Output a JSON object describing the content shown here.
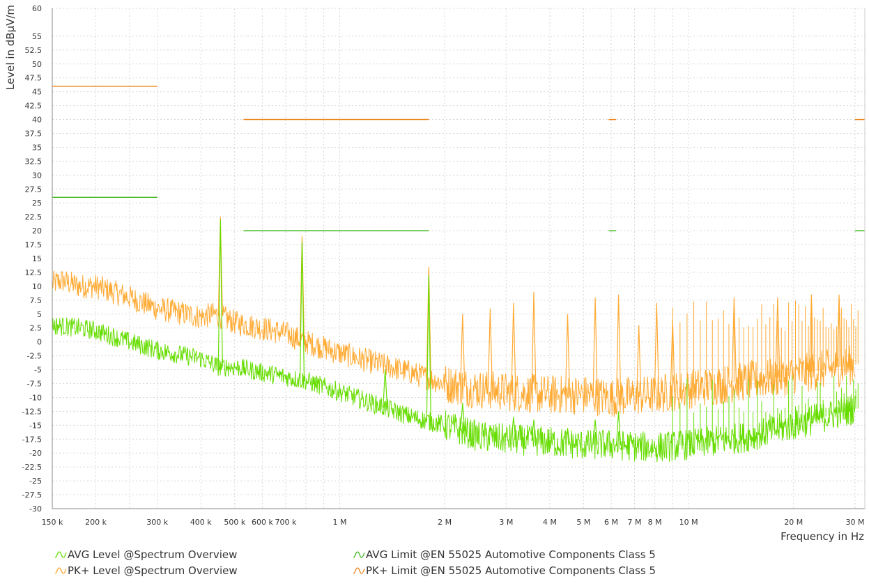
{
  "chart_data": {
    "type": "line",
    "xlabel": "Frequency in Hz",
    "ylabel": "Level in dBµV/m",
    "x_scale": "log",
    "xlim": [
      150000,
      32000000
    ],
    "ylim": [
      -30,
      60
    ],
    "grid": true,
    "y_ticks": [
      {
        "v": 60,
        "label": "60"
      },
      {
        "v": 55,
        "label": "55"
      },
      {
        "v": 52.5,
        "label": "52.5"
      },
      {
        "v": 50,
        "label": "50"
      },
      {
        "v": 47.5,
        "label": "47.5"
      },
      {
        "v": 45,
        "label": "45"
      },
      {
        "v": 42.5,
        "label": "42.5"
      },
      {
        "v": 40,
        "label": "40"
      },
      {
        "v": 37.5,
        "label": "37.5"
      },
      {
        "v": 35,
        "label": "35"
      },
      {
        "v": 32.5,
        "label": "32.5"
      },
      {
        "v": 30,
        "label": "30"
      },
      {
        "v": 27.5,
        "label": "27.5"
      },
      {
        "v": 25,
        "label": "25"
      },
      {
        "v": 22.5,
        "label": "22.5"
      },
      {
        "v": 20,
        "label": "20"
      },
      {
        "v": 17.5,
        "label": "17.5"
      },
      {
        "v": 15,
        "label": "15"
      },
      {
        "v": 12.5,
        "label": "12.5"
      },
      {
        "v": 10,
        "label": "10"
      },
      {
        "v": 7.5,
        "label": "7.5"
      },
      {
        "v": 5,
        "label": "5"
      },
      {
        "v": 2.5,
        "label": "2.5"
      },
      {
        "v": 0,
        "label": "0"
      },
      {
        "v": -2.5,
        "label": "-2.5"
      },
      {
        "v": -5,
        "label": "-5"
      },
      {
        "v": -7.5,
        "label": "-7.5"
      },
      {
        "v": -10,
        "label": "-10"
      },
      {
        "v": -12.5,
        "label": "-12.5"
      },
      {
        "v": -15,
        "label": "-15"
      },
      {
        "v": -17.5,
        "label": "-17.5"
      },
      {
        "v": -20,
        "label": "-20"
      },
      {
        "v": -22.5,
        "label": "-22.5"
      },
      {
        "v": -25,
        "label": "-25"
      },
      {
        "v": -27.5,
        "label": "-27.5"
      },
      {
        "v": -30,
        "label": "-30"
      }
    ],
    "x_ticks": [
      {
        "v": 150000,
        "label": "150 k"
      },
      {
        "v": 200000,
        "label": "200 k"
      },
      {
        "v": 300000,
        "label": "300 k"
      },
      {
        "v": 400000,
        "label": "400 k"
      },
      {
        "v": 500000,
        "label": "500 k"
      },
      {
        "v": 600000,
        "label": "600 k"
      },
      {
        "v": 700000,
        "label": "700 k"
      },
      {
        "v": 1000000,
        "label": "1 M"
      },
      {
        "v": 2000000,
        "label": "2 M"
      },
      {
        "v": 3000000,
        "label": "3 M"
      },
      {
        "v": 4000000,
        "label": "4 M"
      },
      {
        "v": 5000000,
        "label": "5 M"
      },
      {
        "v": 6000000,
        "label": "6 M"
      },
      {
        "v": 7000000,
        "label": "7 M"
      },
      {
        "v": 8000000,
        "label": "8 M"
      },
      {
        "v": 10000000,
        "label": "10 M"
      },
      {
        "v": 20000000,
        "label": "20 M"
      },
      {
        "v": 30000000,
        "label": "30 M"
      }
    ],
    "x_grid": [
      150000,
      200000,
      250000,
      300000,
      400000,
      500000,
      600000,
      700000,
      800000,
      900000,
      1000000,
      2000000,
      3000000,
      4000000,
      5000000,
      6000000,
      7000000,
      8000000,
      9000000,
      10000000,
      20000000,
      30000000
    ],
    "colors": {
      "avg": "#66dd00",
      "pk": "#ffaa33",
      "pk_limit": "#ee8822",
      "avg_limit": "#44bb22",
      "grid": "#d8d8d8",
      "axis": "#888888"
    },
    "limit_segments": {
      "pk": [
        {
          "x": [
            150000,
            300000
          ],
          "y": 46
        },
        {
          "x": [
            530000,
            1800000
          ],
          "y": 40
        },
        {
          "x": [
            5900000,
            6200000
          ],
          "y": 40
        },
        {
          "x": [
            30000000,
            32000000
          ],
          "y": 40
        }
      ],
      "avg": [
        {
          "x": [
            150000,
            300000
          ],
          "y": 26
        },
        {
          "x": [
            530000,
            1800000
          ],
          "y": 20
        },
        {
          "x": [
            5900000,
            6200000
          ],
          "y": 20
        },
        {
          "x": [
            30000000,
            32000000
          ],
          "y": 20
        }
      ]
    },
    "series": [
      {
        "key": "pk",
        "name": "PK+ Level @Spectrum Overview",
        "baseline": [
          [
            150000,
            10.5
          ],
          [
            160000,
            11
          ],
          [
            180000,
            10
          ],
          [
            200000,
            10
          ],
          [
            250000,
            8
          ],
          [
            300000,
            6
          ],
          [
            400000,
            4.5
          ],
          [
            440000,
            5
          ],
          [
            500000,
            3.5
          ],
          [
            600000,
            2.5
          ],
          [
            700000,
            1.5
          ],
          [
            800000,
            0
          ],
          [
            1000000,
            -2
          ],
          [
            1300000,
            -4
          ],
          [
            1600000,
            -5.5
          ],
          [
            2000000,
            -7.5
          ],
          [
            2500000,
            -8.5
          ],
          [
            3000000,
            -9
          ],
          [
            4000000,
            -9.5
          ],
          [
            5000000,
            -9.5
          ],
          [
            6000000,
            -10
          ],
          [
            8000000,
            -9.5
          ],
          [
            10000000,
            -8.5
          ],
          [
            15000000,
            -7
          ],
          [
            20000000,
            -6
          ],
          [
            30000000,
            -4
          ]
        ],
        "peaks": [
          {
            "f": 455000,
            "y": 22.5
          },
          {
            "f": 780000,
            "y": 19
          },
          {
            "f": 1800000,
            "y": 13.5
          },
          {
            "f": 2250000,
            "y": 5
          },
          {
            "f": 2700000,
            "y": 6
          },
          {
            "f": 3150000,
            "y": 7
          },
          {
            "f": 3600000,
            "y": 9
          },
          {
            "f": 4500000,
            "y": 5
          },
          {
            "f": 5400000,
            "y": 8
          },
          {
            "f": 6300000,
            "y": 8.5
          },
          {
            "f": 7200000,
            "y": 3
          },
          {
            "f": 8100000,
            "y": 7
          },
          {
            "f": 9000000,
            "y": 4
          },
          {
            "f": 13500000,
            "y": 8
          },
          {
            "f": 18000000,
            "y": 8
          },
          {
            "f": 22500000,
            "y": 8.5
          },
          {
            "f": 27000000,
            "y": 8.5
          }
        ],
        "harmonic_start": 9000000,
        "harmonic_step": 450000,
        "harmonic_y": [
          2,
          7.5
        ]
      },
      {
        "key": "avg",
        "name": "AVG Level @Spectrum Overview",
        "baseline": [
          [
            150000,
            3
          ],
          [
            180000,
            2.5
          ],
          [
            200000,
            2
          ],
          [
            250000,
            0
          ],
          [
            300000,
            -1.5
          ],
          [
            400000,
            -3
          ],
          [
            450000,
            -4.5
          ],
          [
            500000,
            -4.5
          ],
          [
            600000,
            -5.5
          ],
          [
            800000,
            -7
          ],
          [
            1000000,
            -9
          ],
          [
            1300000,
            -11.5
          ],
          [
            1600000,
            -13.5
          ],
          [
            2000000,
            -15
          ],
          [
            2500000,
            -17
          ],
          [
            3000000,
            -17.5
          ],
          [
            4000000,
            -18
          ],
          [
            5000000,
            -18.5
          ],
          [
            6000000,
            -18.5
          ],
          [
            8000000,
            -19
          ],
          [
            10000000,
            -18.5
          ],
          [
            15000000,
            -17
          ],
          [
            20000000,
            -15
          ],
          [
            30000000,
            -12
          ]
        ],
        "peaks": [
          {
            "f": 455000,
            "y": 22
          },
          {
            "f": 780000,
            "y": 18
          },
          {
            "f": 1350000,
            "y": -5
          },
          {
            "f": 1800000,
            "y": 12
          },
          {
            "f": 2250000,
            "y": -11
          },
          {
            "f": 2700000,
            "y": -15
          },
          {
            "f": 3150000,
            "y": -13.5
          },
          {
            "f": 3600000,
            "y": -14
          },
          {
            "f": 4500000,
            "y": -15.5
          },
          {
            "f": 5400000,
            "y": -14
          },
          {
            "f": 6300000,
            "y": -12.5
          }
        ],
        "harmonic_start": 9000000,
        "harmonic_step": 450000,
        "harmonic_y": [
          -13,
          -6
        ]
      }
    ],
    "legend": [
      {
        "key": "avg",
        "label": "AVG Level @Spectrum Overview",
        "color": "#66dd00"
      },
      {
        "key": "pk",
        "label": "PK+ Level @Spectrum Overview",
        "color": "#ffaa33"
      },
      {
        "key": "avg_limit",
        "label": "AVG Limit @EN 55025 Automotive Components Class 5",
        "color": "#44bb22"
      },
      {
        "key": "pk_limit",
        "label": "PK+ Limit @EN 55025 Automotive Components Class 5",
        "color": "#ee8822"
      }
    ]
  }
}
